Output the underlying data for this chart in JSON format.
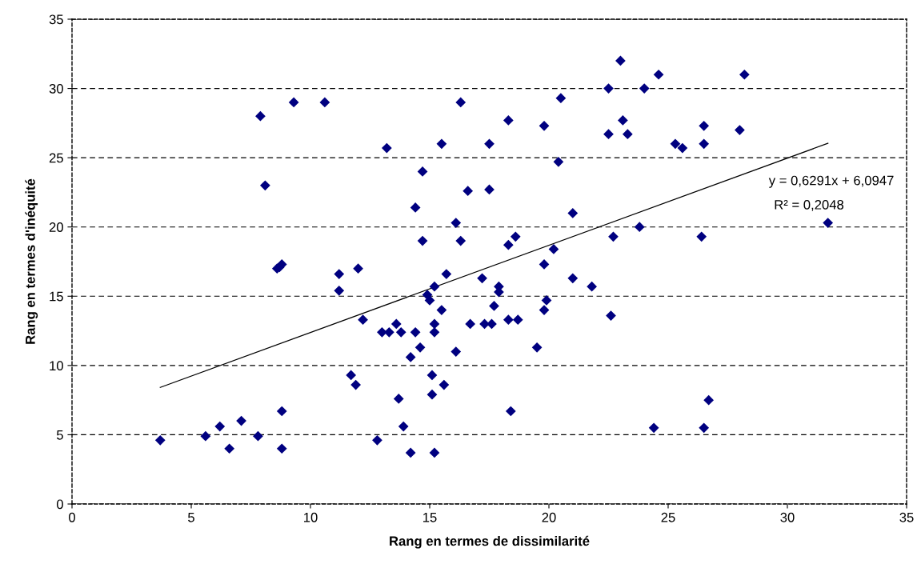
{
  "chart_data": {
    "type": "scatter",
    "xlabel": "Rang en termes de dissimilarité",
    "ylabel": "Rang en termes d'inéquité",
    "xlim": [
      0,
      35
    ],
    "ylim": [
      0,
      35
    ],
    "xticks": [
      0,
      5,
      10,
      15,
      20,
      25,
      30,
      35
    ],
    "yticks": [
      0,
      5,
      10,
      15,
      20,
      25,
      30,
      35
    ],
    "grid": "y",
    "marker": "diamond",
    "legend": false,
    "annotations": [
      "y = 0,6291x + 6,0947",
      "R² = 0,2048"
    ],
    "series": [
      {
        "color": "#000080",
        "x": [
          3.7,
          5.6,
          6.2,
          6.6,
          7.1,
          7.8,
          8.8,
          8.8,
          7.9,
          8.1,
          9.3,
          10.6,
          8.6,
          8.8,
          8.7,
          11.2,
          11.2,
          12.0,
          12.2,
          11.7,
          11.9,
          12.8,
          13.0,
          13.3,
          13.2,
          13.6,
          13.8,
          13.7,
          13.9,
          14.2,
          14.2,
          14.4,
          14.4,
          14.6,
          14.7,
          14.7,
          14.9,
          15.0,
          15.1,
          15.1,
          15.2,
          15.2,
          15.2,
          15.2,
          15.5,
          15.5,
          15.6,
          15.7,
          16.1,
          16.1,
          16.3,
          16.3,
          16.6,
          16.7,
          17.2,
          17.3,
          17.5,
          17.5,
          17.6,
          17.7,
          17.9,
          17.9,
          18.3,
          18.3,
          18.3,
          18.4,
          18.6,
          18.7,
          19.5,
          19.8,
          19.8,
          19.8,
          19.9,
          20.2,
          20.4,
          20.5,
          21.0,
          21.0,
          21.8,
          22.5,
          22.5,
          22.6,
          22.7,
          23.0,
          23.1,
          23.3,
          23.8,
          24.0,
          24.4,
          24.6,
          25.3,
          25.6,
          26.4,
          26.5,
          26.5,
          26.5,
          26.7,
          28.0,
          28.2,
          31.7
        ],
        "values": [
          4.6,
          4.9,
          5.6,
          4.0,
          6.0,
          4.9,
          6.7,
          4.0,
          28.0,
          23.0,
          29.0,
          29.0,
          17.0,
          17.3,
          17.1,
          16.6,
          15.4,
          17.0,
          13.3,
          9.3,
          8.6,
          4.6,
          12.4,
          12.4,
          25.7,
          13.0,
          12.4,
          7.6,
          5.6,
          3.7,
          10.6,
          12.4,
          21.4,
          11.3,
          19.0,
          24.0,
          15.1,
          14.7,
          7.9,
          9.3,
          12.4,
          13.0,
          15.7,
          3.7,
          26.0,
          14.0,
          8.6,
          16.6,
          11.0,
          20.3,
          29.0,
          19.0,
          22.6,
          13.0,
          16.3,
          13.0,
          26.0,
          22.7,
          13.0,
          14.3,
          15.3,
          15.7,
          18.7,
          13.3,
          27.7,
          6.7,
          19.3,
          13.3,
          11.3,
          17.3,
          14.0,
          27.3,
          14.7,
          18.4,
          24.7,
          29.3,
          21.0,
          16.3,
          15.7,
          30.0,
          26.7,
          13.6,
          19.3,
          32.0,
          27.7,
          26.7,
          20.0,
          30.0,
          5.5,
          31.0,
          26.0,
          25.7,
          19.3,
          27.3,
          26.0,
          5.5,
          7.5,
          27.0,
          31.0,
          20.3
        ]
      },
      {
        "type": "line",
        "color": "#000000",
        "marker": "none",
        "x": [
          3.7,
          31.7
        ],
        "values": [
          8.42,
          26.04
        ]
      }
    ]
  }
}
